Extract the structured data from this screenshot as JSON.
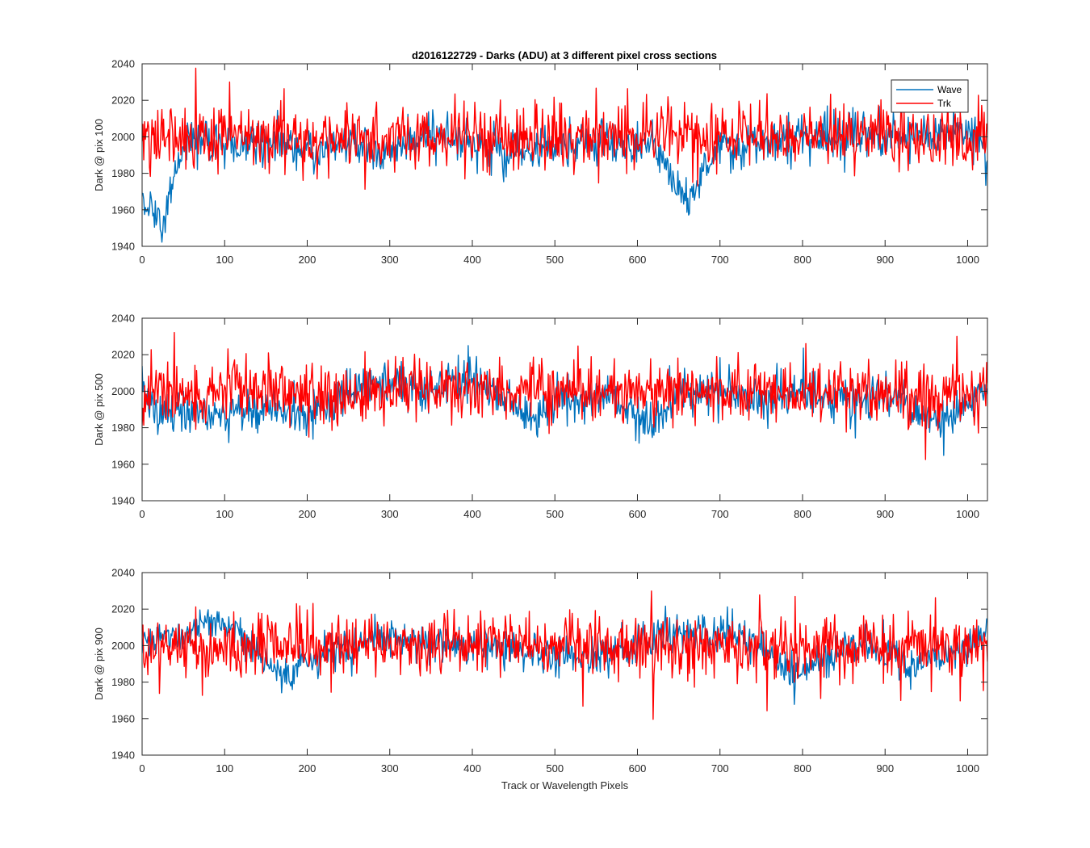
{
  "figure_title": "d2016122729 - Darks (ADU) at 3 different pixel cross sections",
  "colors": {
    "wave": "#0072BD",
    "trk": "#FF0000",
    "axis": "#262626"
  },
  "chart_data": [
    {
      "type": "line",
      "title": "d2016122729 - Darks (ADU) at 3 different pixel cross sections",
      "xlabel": "",
      "ylabel": "Dark @ pix 100",
      "xlim": [
        0,
        1024
      ],
      "ylim": [
        1940,
        2040
      ],
      "xticks": [
        0,
        100,
        200,
        300,
        400,
        500,
        600,
        700,
        800,
        900,
        1000
      ],
      "yticks": [
        1940,
        1960,
        1980,
        2000,
        2020,
        2040
      ],
      "grid": false,
      "legend": "top-right",
      "series": [
        {
          "name": "Wave",
          "color": "#0072BD",
          "x": [
            0,
            10,
            20,
            25,
            30,
            40,
            50,
            60,
            80,
            100,
            120,
            150,
            200,
            250,
            300,
            350,
            400,
            450,
            500,
            550,
            600,
            630,
            650,
            660,
            680,
            700,
            750,
            800,
            850,
            900,
            950,
            1000,
            1024
          ],
          "y": [
            1966,
            1960,
            1956,
            1952,
            1962,
            1975,
            1990,
            2000,
            1998,
            1995,
            1995,
            1998,
            1993,
            1995,
            1992,
            2003,
            1995,
            1990,
            1995,
            1996,
            1996,
            1992,
            1970,
            1962,
            1982,
            1993,
            1997,
            2000,
            2002,
            2000,
            2002,
            2003,
            1988
          ],
          "noise": 7
        },
        {
          "name": "Trk",
          "color": "#FF0000",
          "x": [
            0,
            1024
          ],
          "y": [
            2000,
            2000
          ],
          "noise": 10
        }
      ]
    },
    {
      "type": "line",
      "xlabel": "",
      "ylabel": "Dark @ pix 500",
      "xlim": [
        0,
        1024
      ],
      "ylim": [
        1940,
        2040
      ],
      "xticks": [
        0,
        100,
        200,
        300,
        400,
        500,
        600,
        700,
        800,
        900,
        1000
      ],
      "yticks": [
        1940,
        1960,
        1980,
        2000,
        2020,
        2040
      ],
      "grid": false,
      "series": [
        {
          "name": "Wave",
          "color": "#0072BD",
          "x": [
            0,
            20,
            40,
            100,
            150,
            200,
            250,
            300,
            350,
            400,
            450,
            470,
            500,
            550,
            600,
            615,
            650,
            700,
            750,
            800,
            850,
            900,
            960,
            1000,
            1024
          ],
          "y": [
            2003,
            1985,
            1990,
            1988,
            1992,
            1988,
            2000,
            2005,
            2000,
            2008,
            1992,
            1983,
            1995,
            1998,
            1990,
            1980,
            2000,
            2000,
            1995,
            2000,
            1995,
            1998,
            1982,
            1995,
            2002
          ],
          "noise": 7
        },
        {
          "name": "Trk",
          "color": "#FF0000",
          "x": [
            0,
            1024
          ],
          "y": [
            2000,
            2000
          ],
          "noise": 10
        }
      ]
    },
    {
      "type": "line",
      "xlabel": "Track or Wavelength Pixels",
      "ylabel": "Dark @ pix 900",
      "xlim": [
        0,
        1024
      ],
      "ylim": [
        1940,
        2040
      ],
      "xticks": [
        0,
        100,
        200,
        300,
        400,
        500,
        600,
        700,
        800,
        900,
        1000
      ],
      "yticks": [
        1940,
        1960,
        1980,
        2000,
        2020,
        2040
      ],
      "grid": false,
      "series": [
        {
          "name": "Wave",
          "color": "#0072BD",
          "x": [
            0,
            50,
            80,
            100,
            120,
            150,
            170,
            200,
            250,
            300,
            350,
            400,
            450,
            500,
            550,
            600,
            650,
            700,
            750,
            780,
            800,
            850,
            900,
            930,
            1000,
            1024
          ],
          "y": [
            2002,
            2005,
            2012,
            2010,
            2008,
            1990,
            1985,
            1992,
            2000,
            2005,
            2002,
            2000,
            1998,
            1995,
            1993,
            2002,
            2008,
            2008,
            2000,
            1990,
            1985,
            2000,
            1998,
            1988,
            1998,
            2008
          ],
          "noise": 6
        },
        {
          "name": "Trk",
          "color": "#FF0000",
          "x": [
            0,
            1024
          ],
          "y": [
            2000,
            2000
          ],
          "noise": 10
        }
      ]
    }
  ]
}
